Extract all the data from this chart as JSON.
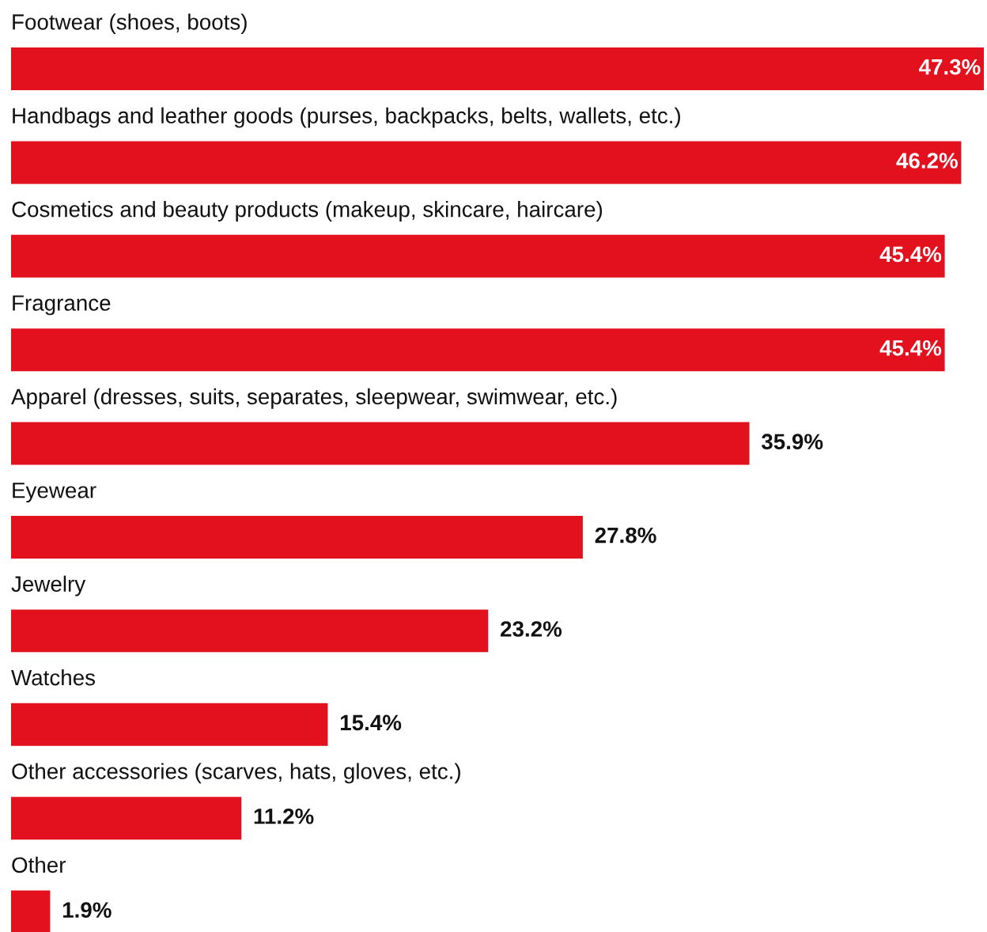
{
  "chart_data": {
    "type": "bar",
    "orientation": "horizontal",
    "value_labels": [
      "47.3%",
      "46.2%",
      "45.4%",
      "45.4%",
      "35.9%",
      "27.8%",
      "23.2%",
      "15.4%",
      "11.2%",
      "1.9%"
    ],
    "color": "#e3101e",
    "categories": [
      "Footwear (shoes, boots)",
      "Handbags and leather goods (purses, backpacks, belts, wallets, etc.)",
      "Cosmetics and beauty products (makeup, skincare, haircare)",
      "Fragrance",
      "Apparel (dresses, suits, separates, sleepwear, swimwear, etc.)",
      "Eyewear",
      "Jewelry",
      "Watches",
      "Other accessories (scarves, hats, gloves, etc.)",
      "Other"
    ],
    "values": [
      47.3,
      46.2,
      45.4,
      45.4,
      35.9,
      27.8,
      23.2,
      15.4,
      11.2,
      1.9
    ]
  }
}
